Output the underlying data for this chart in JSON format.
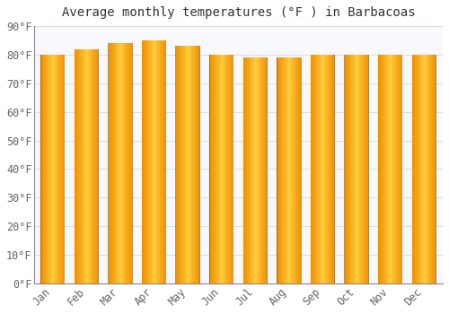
{
  "months": [
    "Jan",
    "Feb",
    "Mar",
    "Apr",
    "May",
    "Jun",
    "Jul",
    "Aug",
    "Sep",
    "Oct",
    "Nov",
    "Dec"
  ],
  "values": [
    80,
    82,
    84,
    85,
    83,
    80,
    79,
    79,
    80,
    80,
    80,
    80
  ],
  "bar_color_center": "#FFD040",
  "bar_color_edge": "#F59500",
  "bar_color_dark_edge": "#D07000",
  "title": "Average monthly temperatures (°F ) in Barbacoas",
  "ylim": [
    0,
    90
  ],
  "yticks": [
    0,
    10,
    20,
    30,
    40,
    50,
    60,
    70,
    80,
    90
  ],
  "ytick_labels": [
    "0°F",
    "10°F",
    "20°F",
    "30°F",
    "40°F",
    "50°F",
    "60°F",
    "70°F",
    "80°F",
    "90°F"
  ],
  "background_color": "#FFFFFF",
  "plot_bg_color": "#F8F8FF",
  "grid_color": "#DDDDDD",
  "title_fontsize": 10,
  "tick_fontsize": 8.5,
  "bar_width": 0.72
}
